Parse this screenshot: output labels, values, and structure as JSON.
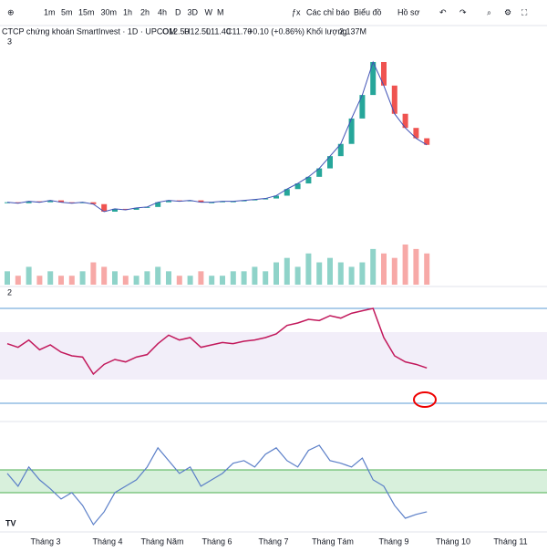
{
  "toolbar": {
    "intervals": [
      "1m",
      "5m",
      "15m",
      "30m",
      "1h",
      "2h",
      "4h",
      "D",
      "3D",
      "W",
      "M"
    ],
    "indicators": "Các chỉ báo",
    "chart": "Biểu đồ",
    "profile": "Hồ sơ"
  },
  "legend": {
    "symbol": "CTCP chứng khoán SmartInvest · 1D · UPCOM",
    "open": "O12.50",
    "high": "H12.50",
    "low": "L11.40",
    "close": "C11.70",
    "change": "+0.10 (+0.86%)",
    "volume_label": "Khối lượng",
    "volume": "2.137M"
  },
  "panes": [
    "3",
    "2"
  ],
  "x_labels": [
    "Tháng 3",
    "Tháng 4",
    "Tháng Năm",
    "Tháng 6",
    "Tháng 7",
    "Tháng Tám",
    "Tháng 9",
    "Tháng 10",
    "Tháng 11"
  ],
  "price": [
    5.6,
    5.5,
    5.7,
    5.6,
    5.8,
    5.6,
    5.5,
    5.6,
    5.4,
    4.6,
    4.9,
    4.8,
    5.0,
    5.1,
    5.6,
    5.8,
    5.7,
    5.8,
    5.6,
    5.6,
    5.7,
    5.7,
    5.8,
    5.9,
    6.0,
    6.3,
    7.0,
    7.6,
    8.3,
    9.2,
    10.5,
    11.8,
    14.5,
    17.0,
    20.5,
    18.0,
    15.0,
    13.5,
    12.4,
    11.7
  ],
  "volume": [
    3,
    2,
    4,
    2,
    3,
    2,
    2,
    3,
    5,
    4,
    3,
    2,
    2,
    3,
    4,
    3,
    2,
    2,
    3,
    2,
    2,
    3,
    3,
    4,
    3,
    5,
    6,
    4,
    7,
    5,
    6,
    5,
    4,
    5,
    8,
    7,
    6,
    9,
    8,
    7
  ],
  "rsi": [
    55,
    52,
    58,
    50,
    54,
    48,
    45,
    44,
    30,
    38,
    42,
    40,
    44,
    46,
    55,
    62,
    58,
    60,
    52,
    54,
    56,
    55,
    57,
    58,
    60,
    63,
    70,
    72,
    75,
    74,
    78,
    76,
    80,
    82,
    84,
    60,
    45,
    40,
    38,
    35
  ],
  "oscillator": [
    50,
    40,
    55,
    45,
    38,
    30,
    35,
    25,
    10,
    20,
    35,
    40,
    45,
    55,
    70,
    60,
    50,
    55,
    40,
    45,
    50,
    58,
    60,
    55,
    65,
    70,
    60,
    55,
    68,
    72,
    60,
    58,
    55,
    62,
    45,
    40,
    25,
    15,
    18,
    20
  ]
}
